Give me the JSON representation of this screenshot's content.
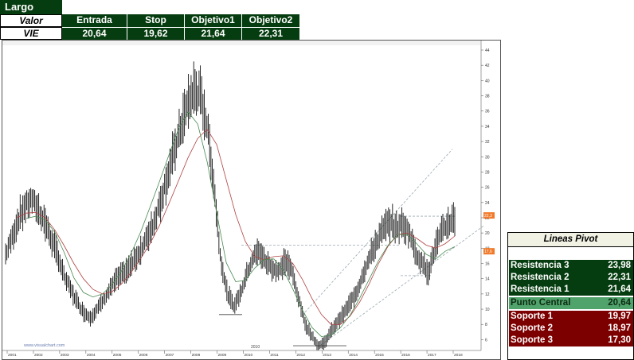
{
  "header": {
    "position_label": "Largo",
    "col_labels": [
      "Valor",
      "Entrada",
      "Stop",
      "Objetivo1",
      "Objetivo2"
    ],
    "ticker": "VIE",
    "values": [
      "20,64",
      "19,62",
      "21,64",
      "22,31"
    ]
  },
  "chart_data": {
    "type": "line",
    "title": "",
    "price_axis": [
      "44",
      "42",
      "40",
      "38",
      "36",
      "34",
      "32",
      "30",
      "28",
      "26",
      "24",
      "22",
      "20",
      "18",
      "16",
      "14",
      "12",
      "10",
      "8",
      "6"
    ],
    "year_axis": [
      "2001",
      "2002",
      "2003",
      "2004",
      "2005",
      "2006",
      "2007",
      "2008",
      "2009",
      "2010",
      "2011",
      "2012",
      "2013",
      "2014",
      "2015",
      "2016",
      "2017",
      "2018"
    ],
    "year_label_center": "2010",
    "watermark": "www.visualchart.com",
    "price_tags": [
      "22,3",
      "17,6"
    ],
    "colors": {
      "candles": "#111111",
      "ma_red": "#b04040",
      "ma_green": "#4a8a52",
      "dashed": "#9aa9b0",
      "tag": "#f07a2a"
    },
    "series": [
      {
        "name": "",
        "values": [
          17.2,
          19.4,
          21.9,
          23.5,
          24.4,
          23.1,
          21.5,
          19.2,
          17.1,
          14.3,
          12.6,
          10.9,
          9.6,
          8.9,
          9.9,
          11.1,
          12.6,
          13.9,
          14.6,
          15.4,
          16.8,
          18.0,
          19.9,
          21.9,
          24.8,
          27.9,
          30.9,
          34.1,
          36.9,
          38.8,
          37.9,
          33.9,
          26.4,
          16.9,
          12.2,
          10.4,
          11.9,
          14.5,
          16.8,
          17.6,
          16.1,
          15.4,
          14.9,
          16.4,
          14.9,
          11.4,
          8.1,
          6.6,
          5.2,
          5.6,
          7.1,
          8.4,
          9.5,
          10.9,
          12.4,
          14.9,
          16.9,
          18.9,
          20.4,
          21.4,
          20.7,
          21.1,
          20.1,
          17.4,
          16.0,
          14.9,
          18.1,
          20.1,
          21.3,
          21.9
        ]
      },
      {
        "name": "",
        "values": [
          22.0,
          22.6,
          22.7,
          22.0,
          20.4,
          18.3,
          16.0,
          14.0,
          12.6,
          12.0,
          12.3,
          13.3,
          14.8,
          16.6,
          18.6,
          21.0,
          23.9,
          26.9,
          29.9,
          32.4,
          33.6,
          31.6,
          27.0,
          22.4,
          18.9,
          16.9,
          16.5,
          16.9,
          17.0,
          16.0,
          13.9,
          11.4,
          9.3,
          8.0,
          8.0,
          9.1,
          10.9,
          13.3,
          16.0,
          18.3,
          19.8,
          20.0,
          19.3,
          18.4,
          18.0,
          18.6,
          19.6
        ]
      },
      {
        "name": "",
        "values": [
          21.9,
          22.2,
          21.7,
          20.1,
          17.4,
          14.1,
          12.2,
          11.6,
          12.0,
          13.2,
          15.0,
          17.3,
          20.1,
          23.4,
          26.8,
          30.3,
          33.7,
          35.9,
          34.3,
          29.3,
          22.6,
          16.1,
          13.6,
          13.8,
          15.4,
          16.5,
          16.6,
          15.1,
          12.6,
          9.9,
          7.6,
          6.4,
          6.6,
          7.6,
          9.2,
          11.4,
          13.9,
          16.4,
          18.4,
          19.8,
          19.8,
          18.6,
          17.2,
          16.6,
          17.6,
          18.2
        ]
      }
    ]
  },
  "pivot": {
    "title": "Lineas Pivot",
    "rows": [
      {
        "label": "Resistencia 3",
        "value": "23,98"
      },
      {
        "label": "Resistencia 2",
        "value": "22,31"
      },
      {
        "label": "Resistencia 1",
        "value": "21,64"
      },
      {
        "label": "Punto Central",
        "value": "20,64"
      },
      {
        "label": "Soporte 1",
        "value": "19,97"
      },
      {
        "label": "Soporte 2",
        "value": "18,97"
      },
      {
        "label": "Soporte 3",
        "value": "17,30"
      }
    ]
  }
}
